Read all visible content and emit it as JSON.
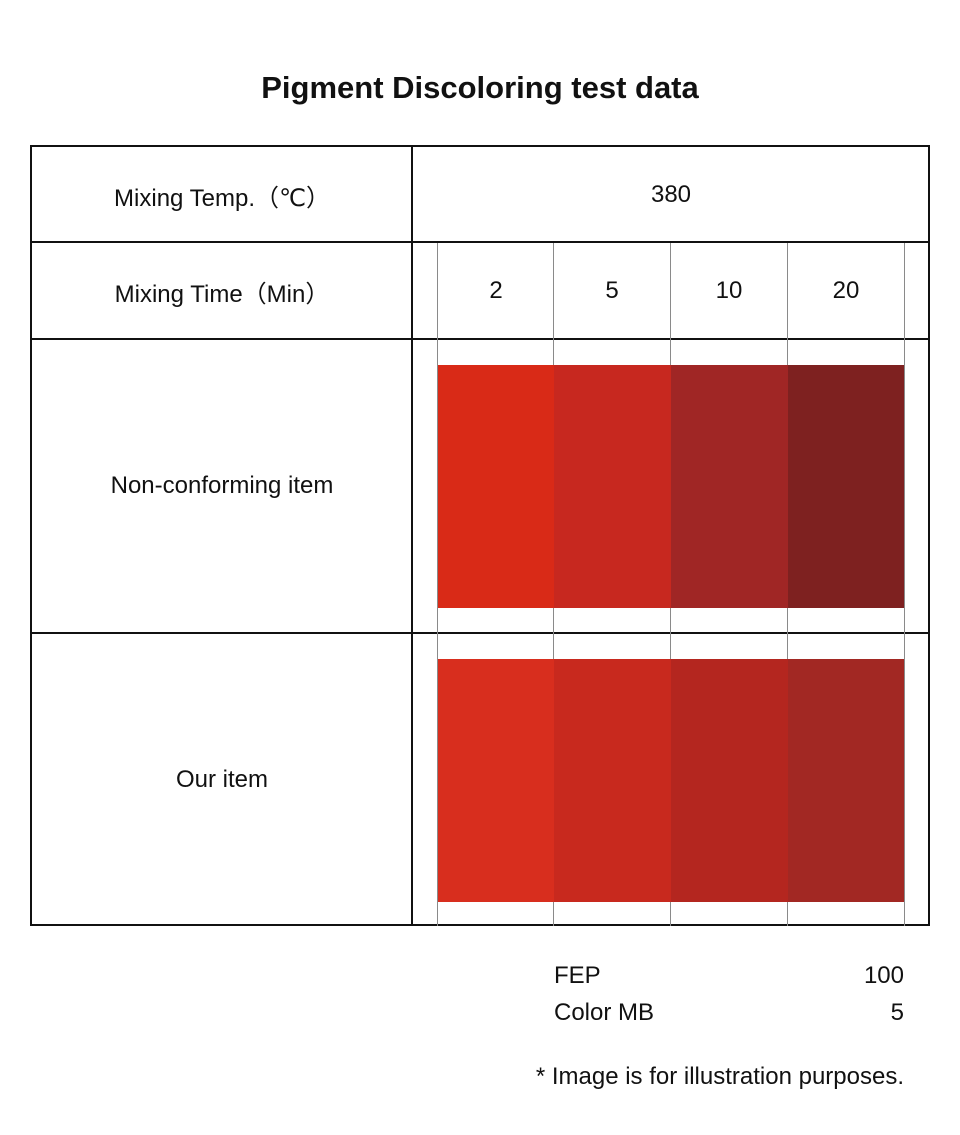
{
  "title": "Pigment Discoloring test data",
  "rows": {
    "temp_label": "Mixing Temp.（℃）",
    "temp_value": "380",
    "time_label": "Mixing Time（Min）",
    "times": [
      "2",
      "5",
      "10",
      "20"
    ],
    "nonconforming_label": "Non-conforming item",
    "ours_label": "Our item"
  },
  "swatch_colors": {
    "nonconforming": [
      "#d92a17",
      "#c7281f",
      "#a02625",
      "#7e2120"
    ],
    "ours": [
      "#d82e1e",
      "#c8291e",
      "#b4261f",
      "#a22823"
    ]
  },
  "legend": [
    {
      "name": "FEP",
      "value": "100"
    },
    {
      "name": "Color MB",
      "value": "5"
    }
  ],
  "note": "* Image is for illustration purposes."
}
